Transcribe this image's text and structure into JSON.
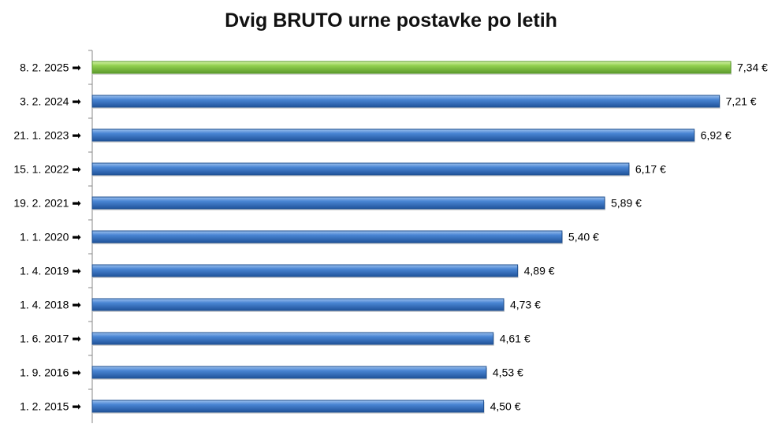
{
  "chart_data": {
    "type": "bar",
    "orientation": "horizontal",
    "title": "Dvig BRUTO urne postavke po letih",
    "xlabel": "",
    "ylabel": "",
    "categories": [
      "8. 2. 2025",
      "3. 2. 2024",
      "21. 1. 2023",
      "15. 1. 2022",
      "19. 2. 2021",
      "1. 1. 2020",
      "1. 4. 2019",
      "1. 4. 2018",
      "1. 6. 2017",
      "1. 9. 2016",
      "1. 2. 2015"
    ],
    "values": [
      7.34,
      7.21,
      6.92,
      6.17,
      5.89,
      5.4,
      4.89,
      4.73,
      4.61,
      4.53,
      4.5
    ],
    "data_labels": [
      "7,34 €",
      "7,21 €",
      "6,92 €",
      "6,17 €",
      "5,89 €",
      "5,40 €",
      "4,89 €",
      "4,73 €",
      "4,61 €",
      "4,53 €",
      "4,50 €"
    ],
    "xlim": [
      0,
      7.34
    ],
    "grid": false,
    "legend": "none",
    "colors": {
      "highlight": "#8fd14f",
      "highlight_dark": "#5a9a2a",
      "bar": "#3f79c6",
      "bar_dark": "#1f4f8f",
      "arrow": "#000000"
    },
    "tick_marker": "➡"
  }
}
